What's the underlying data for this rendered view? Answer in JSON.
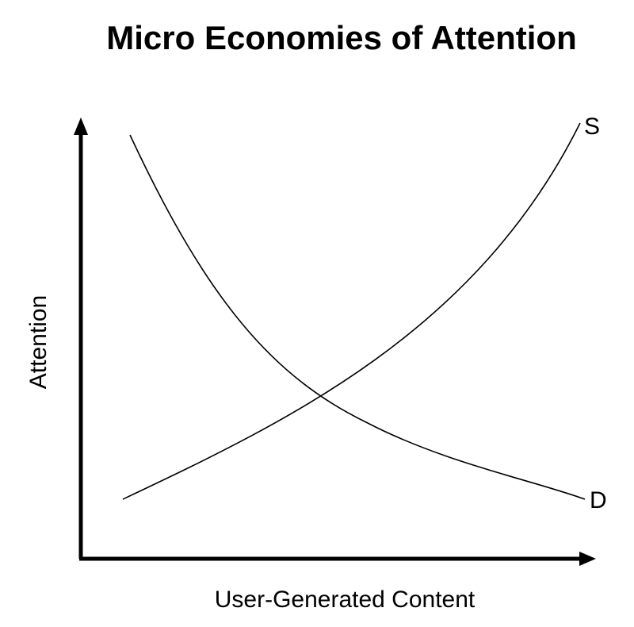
{
  "title": "Micro Economies of Attention",
  "axes": {
    "x_label": "User-Generated Content",
    "y_label": "Attention"
  },
  "curves": {
    "supply": {
      "label": "S"
    },
    "demand": {
      "label": "D"
    }
  },
  "colors": {
    "background": "#ffffff",
    "ink": "#000000"
  }
}
